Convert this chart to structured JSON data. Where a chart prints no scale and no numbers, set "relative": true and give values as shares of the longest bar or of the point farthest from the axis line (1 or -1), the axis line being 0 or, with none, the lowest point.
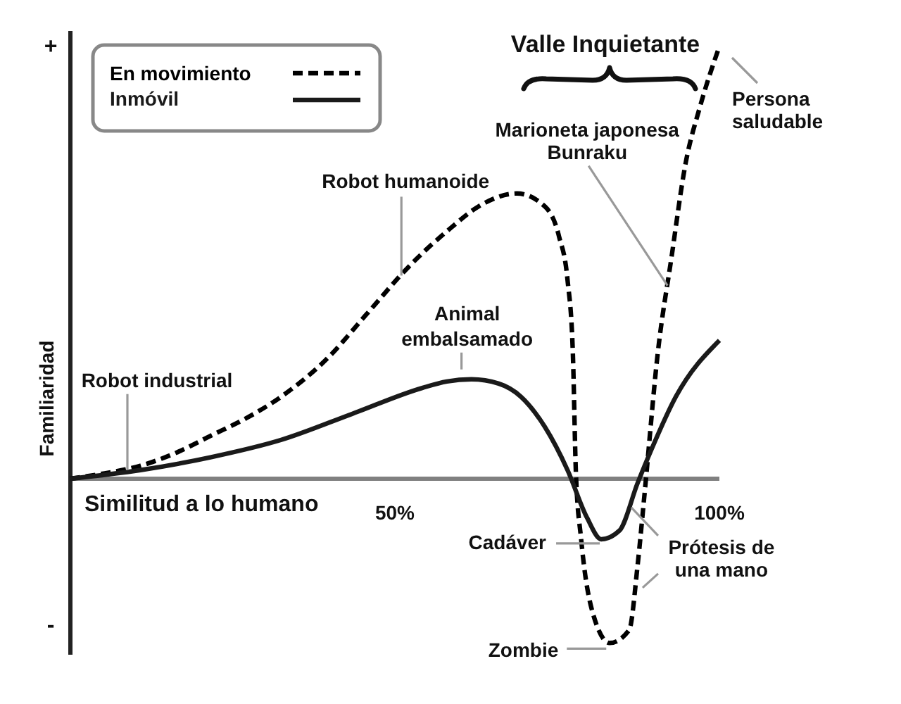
{
  "chart_data": {
    "type": "line",
    "relative": true,
    "xlabel": "Similitud a lo humano",
    "ylabel": "Familiaridad",
    "xlim": [
      0,
      100
    ],
    "xticks": [
      {
        "value": 50,
        "label": "50%"
      },
      {
        "value": 100,
        "label": "100%"
      }
    ],
    "legend": "top left",
    "series": [
      {
        "name": "En movimiento",
        "color": "#000000",
        "line_style": "dashed",
        "x": [
          0,
          4.3,
          10.8,
          16.3,
          21.7,
          27.1,
          32.5,
          39.7,
          45.6,
          52.1,
          58.6,
          62.9,
          68.8,
          73.1,
          75.3,
          76.6,
          77.4,
          77.9,
          78.7,
          80.3,
          83.1,
          86.1,
          87.4,
          88.5,
          90.5,
          92.6,
          94.8,
          97.0,
          100
        ],
        "values": [
          0,
          0.01,
          0.03,
          0.06,
          0.1,
          0.14,
          0.19,
          0.28,
          0.38,
          0.49,
          0.58,
          0.63,
          0.66,
          0.63,
          0.56,
          0.46,
          0.3,
          0.01,
          -0.14,
          -0.3,
          -0.38,
          -0.35,
          -0.2,
          -0.03,
          0.29,
          0.51,
          0.73,
          0.86,
          1
        ]
      },
      {
        "name": "Inmóvil",
        "color": "#1a1a1a",
        "line_style": "solid",
        "x": [
          0,
          10.8,
          21.7,
          32.5,
          43.4,
          54.2,
          58.0,
          61.8,
          66.0,
          69.4,
          73.1,
          76.6,
          79.6,
          81.8,
          84.6,
          87.4,
          89.6,
          93.3,
          100
        ],
        "values": [
          0,
          0.02,
          0.05,
          0.09,
          0.15,
          0.21,
          0.225,
          0.23,
          0.22,
          0.19,
          0.12,
          0.02,
          -0.09,
          -0.14,
          -0.12,
          -0.01,
          0.07,
          0.19,
          0.32
        ]
      }
    ],
    "annotations": [
      "+",
      "Valle Inquietante",
      {
        "text": "Persona\nsaludable",
        "x": 100,
        "y": 1
      },
      {
        "text": "Marioneta japonesa\nBunraku",
        "x": 92,
        "y": 0.45
      },
      {
        "text": "Robot humanoide",
        "x": 51,
        "y": 0.47
      },
      {
        "text": "Animal\nembalsamado",
        "x": 62,
        "y": 0.23
      },
      {
        "text": "Robot industrial",
        "x": 9,
        "y": 0.02
      },
      {
        "text": "Cadáver",
        "x": 82,
        "y": -0.14
      },
      {
        "text": "Prótesis de\nuna mano",
        "x": 86,
        "y": -0.06
      },
      "-",
      {
        "text": "Zombie",
        "x": 83,
        "y": -0.38
      }
    ]
  }
}
